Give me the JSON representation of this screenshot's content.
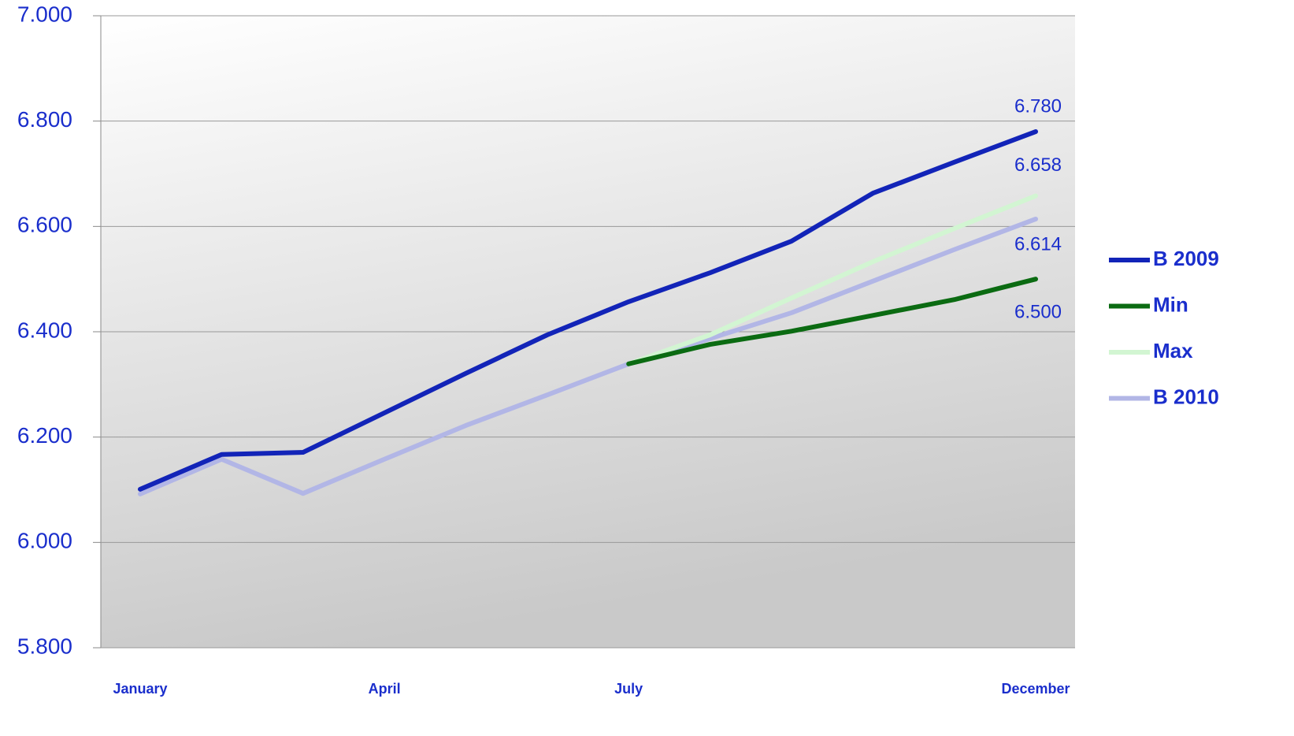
{
  "chart_data": {
    "type": "line",
    "categories": [
      "January",
      null,
      null,
      "April",
      null,
      null,
      "July",
      null,
      null,
      null,
      null,
      "December"
    ],
    "series": [
      {
        "name": "B 2009",
        "color": "#1224b8",
        "values": [
          6.101,
          6.167,
          6.171,
          6.246,
          6.321,
          6.394,
          6.457,
          6.512,
          6.572,
          6.663,
          6.722,
          6.78
        ],
        "value_labels": [
          null,
          null,
          null,
          null,
          null,
          null,
          null,
          null,
          null,
          null,
          null,
          "6.780"
        ]
      },
      {
        "name": "Min",
        "color": "#0b6b12",
        "values": [
          null,
          null,
          null,
          null,
          null,
          null,
          6.339,
          6.376,
          6.401,
          6.431,
          6.461,
          6.5
        ],
        "value_labels": [
          null,
          null,
          null,
          null,
          null,
          null,
          null,
          null,
          null,
          null,
          null,
          "6.500"
        ]
      },
      {
        "name": "Max",
        "color": "#d2f5d2",
        "values": [
          null,
          null,
          null,
          null,
          null,
          null,
          6.339,
          6.394,
          6.464,
          6.533,
          6.596,
          6.658
        ],
        "value_labels": [
          null,
          null,
          null,
          null,
          null,
          null,
          null,
          null,
          null,
          null,
          null,
          "6.658"
        ]
      },
      {
        "name": "B 2010",
        "color": "#b2b6e6",
        "values": [
          6.092,
          6.158,
          6.093,
          6.158,
          6.222,
          6.28,
          6.339,
          6.387,
          6.436,
          6.496,
          6.556,
          6.614
        ],
        "value_labels": [
          null,
          null,
          null,
          null,
          null,
          null,
          null,
          null,
          null,
          null,
          null,
          "6.614"
        ]
      }
    ],
    "ylim": [
      5.8,
      7.0
    ],
    "yticks": [
      {
        "value": 5.8,
        "label": "5.800"
      },
      {
        "value": 6.0,
        "label": "6.000"
      },
      {
        "value": 6.2,
        "label": "6.200"
      },
      {
        "value": 6.4,
        "label": "6.400"
      },
      {
        "value": 6.6,
        "label": "6.600"
      },
      {
        "value": 6.8,
        "label": "6.800"
      },
      {
        "value": 7.0,
        "label": "7.000"
      }
    ],
    "grid": true,
    "legend": "right"
  }
}
